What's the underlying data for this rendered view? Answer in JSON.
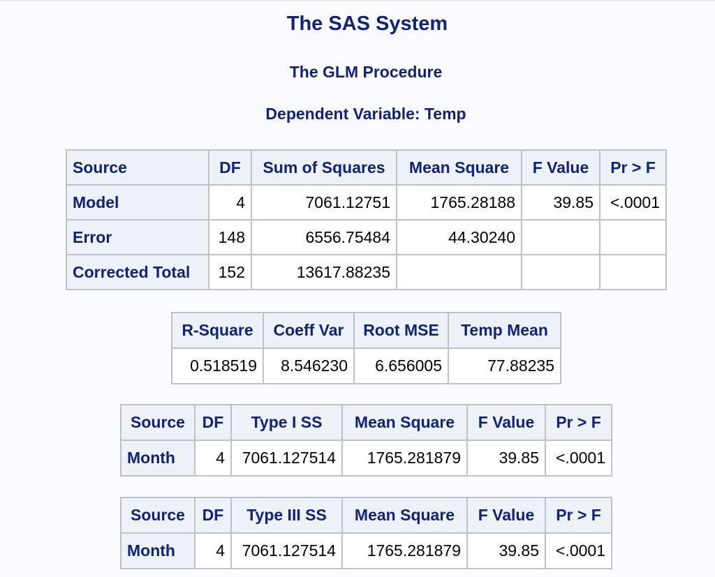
{
  "title": "The SAS System",
  "procedure": "The GLM Procedure",
  "dependent": "Dependent Variable: Temp",
  "anova": {
    "headers": [
      "Source",
      "DF",
      "Sum of Squares",
      "Mean Square",
      "F Value",
      "Pr > F"
    ],
    "rows": [
      {
        "source": "Model",
        "df": "4",
        "ss": "7061.12751",
        "ms": "1765.28188",
        "f": "39.85",
        "p": "<.0001"
      },
      {
        "source": "Error",
        "df": "148",
        "ss": "6556.75484",
        "ms": "44.30240",
        "f": "",
        "p": ""
      },
      {
        "source": "Corrected Total",
        "df": "152",
        "ss": "13617.88235",
        "ms": "",
        "f": "",
        "p": ""
      }
    ]
  },
  "fit": {
    "headers": [
      "R-Square",
      "Coeff Var",
      "Root MSE",
      "Temp Mean"
    ],
    "values": [
      "0.518519",
      "8.546230",
      "6.656005",
      "77.88235"
    ]
  },
  "type1": {
    "headers": [
      "Source",
      "DF",
      "Type I SS",
      "Mean Square",
      "F Value",
      "Pr > F"
    ],
    "row": {
      "source": "Month",
      "df": "4",
      "ss": "7061.127514",
      "ms": "1765.281879",
      "f": "39.85",
      "p": "<.0001"
    }
  },
  "type3": {
    "headers": [
      "Source",
      "DF",
      "Type III SS",
      "Mean Square",
      "F Value",
      "Pr > F"
    ],
    "row": {
      "source": "Month",
      "df": "4",
      "ss": "7061.127514",
      "ms": "1765.281879",
      "f": "39.85",
      "p": "<.0001"
    }
  }
}
